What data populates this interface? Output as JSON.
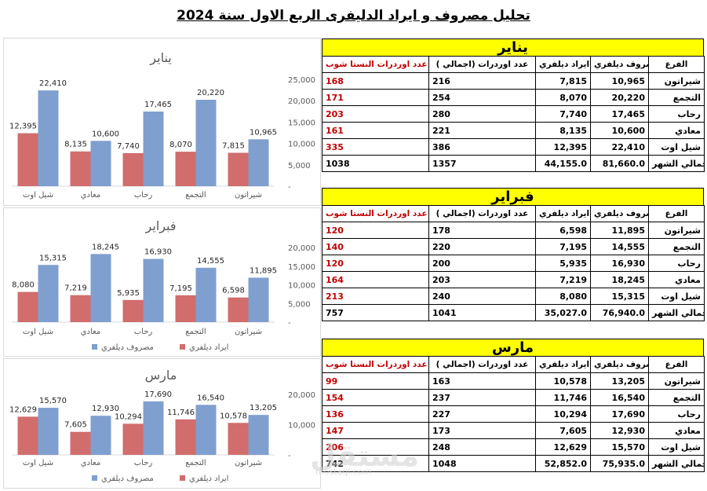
{
  "title": "تحليل مصروف و ايراد الدليفرى الربع الاول سنة 2024",
  "colors": {
    "expense": "#7f9fcf",
    "revenue": "#d16d6d",
    "header_bg": "#ffff00",
    "red_text": "#c00000"
  },
  "table_headers": {
    "col1": "عدد اوردرات النستا شوب",
    "col2": "عدد اوردرات (اجمالي )",
    "col3": "ايراد ديلفري",
    "col4": "مصروف ديلفري",
    "col5": "الفرع"
  },
  "total_label": "اجمالي الشهر",
  "legend": {
    "expense": "مصروف ديلفري",
    "revenue": "ايراد ديلفري"
  },
  "watermark": "مستقل",
  "watermark_url": "mostaql.com",
  "months": [
    {
      "name": "يناير",
      "rows": [
        {
          "insta": "168",
          "total": "216",
          "revenue": "7,815",
          "expense": "10,965",
          "branch": "شيراتون"
        },
        {
          "insta": "171",
          "total": "254",
          "revenue": "8,070",
          "expense": "20,220",
          "branch": "التجمع"
        },
        {
          "insta": "203",
          "total": "280",
          "revenue": "7,740",
          "expense": "17,465",
          "branch": "رحاب"
        },
        {
          "insta": "161",
          "total": "221",
          "revenue": "8,135",
          "expense": "10,600",
          "branch": "معادي"
        },
        {
          "insta": "335",
          "total": "386",
          "revenue": "12,395",
          "expense": "22,410",
          "branch": "شيل اوت"
        }
      ],
      "totals": {
        "insta": "1038",
        "total": "1357",
        "revenue": "44,155.0",
        "expense": "81,660.0"
      }
    },
    {
      "name": "فبراير",
      "rows": [
        {
          "insta": "120",
          "total": "178",
          "revenue": "6,598",
          "expense": "11,895",
          "branch": "شيراتون"
        },
        {
          "insta": "140",
          "total": "220",
          "revenue": "7,195",
          "expense": "14,555",
          "branch": "التجمع"
        },
        {
          "insta": "120",
          "total": "200",
          "revenue": "5,935",
          "expense": "16,930",
          "branch": "رحاب"
        },
        {
          "insta": "164",
          "total": "203",
          "revenue": "7,219",
          "expense": "18,245",
          "branch": "معادي"
        },
        {
          "insta": "213",
          "total": "240",
          "revenue": "8,080",
          "expense": "15,315",
          "branch": "شيل اوت"
        }
      ],
      "totals": {
        "insta": "757",
        "total": "1041",
        "revenue": "35,027.0",
        "expense": "76,940.0"
      }
    },
    {
      "name": "مارس",
      "rows": [
        {
          "insta": "99",
          "total": "163",
          "revenue": "10,578",
          "expense": "13,205",
          "branch": "شيراتون"
        },
        {
          "insta": "154",
          "total": "237",
          "revenue": "11,746",
          "expense": "16,540",
          "branch": "التجمع"
        },
        {
          "insta": "136",
          "total": "227",
          "revenue": "10,294",
          "expense": "17,690",
          "branch": "رحاب"
        },
        {
          "insta": "147",
          "total": "173",
          "revenue": "7,605",
          "expense": "12,930",
          "branch": "معادي"
        },
        {
          "insta": "206",
          "total": "248",
          "revenue": "12,629",
          "expense": "15,570",
          "branch": "شيل اوت"
        }
      ],
      "totals": {
        "insta": "742",
        "total": "1048",
        "revenue": "52,852.0",
        "expense": "75,935.0"
      }
    }
  ],
  "chart_data": [
    {
      "type": "bar",
      "title": "يناير",
      "categories": [
        "شيل اوت",
        "معادي",
        "رحاب",
        "التجمع",
        "شيراتون"
      ],
      "series": [
        {
          "name": "ايراد ديلفري",
          "values": [
            12395,
            8135,
            7740,
            8070,
            7815
          ]
        },
        {
          "name": "مصروف ديلفري",
          "values": [
            22410,
            10600,
            17465,
            20220,
            10965
          ]
        }
      ],
      "value_labels": {
        "revenue": [
          "12,395",
          "8,135",
          "7,740",
          "8,070",
          "7,815"
        ],
        "expense": [
          "22,410",
          "10,600",
          "17,465",
          "20,220",
          "10,965"
        ]
      },
      "yticks": [
        "25,000",
        "20,000",
        "15,000",
        "10,000",
        "5,000",
        "-"
      ],
      "ylim": [
        0,
        25000
      ],
      "legend": "bottom",
      "grid": false
    },
    {
      "type": "bar",
      "title": "فبراير",
      "categories": [
        "شيل اوت",
        "معادي",
        "رحاب",
        "التجمع",
        "شيراتون"
      ],
      "series": [
        {
          "name": "ايراد ديلفري",
          "values": [
            8080,
            7219,
            5935,
            7195,
            6598
          ]
        },
        {
          "name": "مصروف ديلفري",
          "values": [
            15315,
            18245,
            16930,
            14555,
            11895
          ]
        }
      ],
      "value_labels": {
        "revenue": [
          "8,080",
          "7,219",
          "5,935",
          "7,195",
          "6,598"
        ],
        "expense": [
          "15,315",
          "18,245",
          "16,930",
          "14,555",
          "11,895"
        ]
      },
      "yticks": [
        "20,000",
        "15,000",
        "10,000",
        "5,000",
        "-"
      ],
      "ylim": [
        0,
        20000
      ],
      "legend": "bottom",
      "grid": false
    },
    {
      "type": "bar",
      "title": "مارس",
      "categories": [
        "شيل اوت",
        "معادي",
        "رحاب",
        "التجمع",
        "شيراتون"
      ],
      "series": [
        {
          "name": "ايراد ديلفري",
          "values": [
            12629,
            7605,
            10294,
            11746,
            10578
          ]
        },
        {
          "name": "مصروف ديلفري",
          "values": [
            15570,
            12930,
            17690,
            16540,
            13205
          ]
        }
      ],
      "value_labels": {
        "revenue": [
          "12,629",
          "7,605",
          "10,294",
          "11,746",
          "10,578"
        ],
        "expense": [
          "15,570",
          "12,930",
          "17,690",
          "16,540",
          "13,205"
        ]
      },
      "yticks": [
        "20,000",
        "10,000",
        "-"
      ],
      "ylim": [
        0,
        20000
      ],
      "legend": "bottom",
      "grid": false
    }
  ]
}
